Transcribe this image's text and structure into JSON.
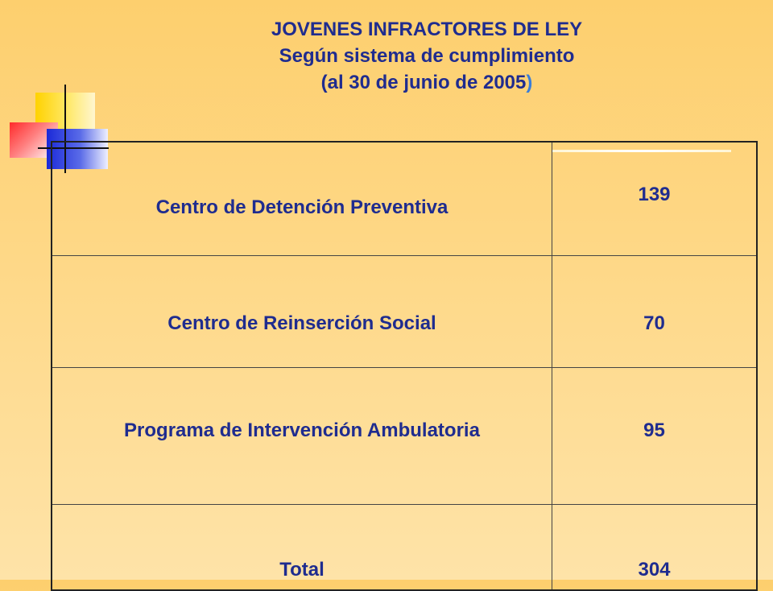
{
  "title": {
    "line1": "JOVENES INFRACTORES DE LEY",
    "line2": "Según sistema de cumplimiento",
    "line3_main": "(al 30 de junio de 2005",
    "line3_paren": ")"
  },
  "table": {
    "rows": [
      {
        "label": "Centro de Detención Preventiva",
        "value": "139"
      },
      {
        "label": "Centro de Reinserción Social",
        "value": "70"
      },
      {
        "label": "Programa de Intervención Ambulatoria",
        "value": "95"
      },
      {
        "label": "Total",
        "value": "304"
      }
    ]
  },
  "colors": {
    "text": "#1f2c8f",
    "background": "#fdd27a"
  }
}
